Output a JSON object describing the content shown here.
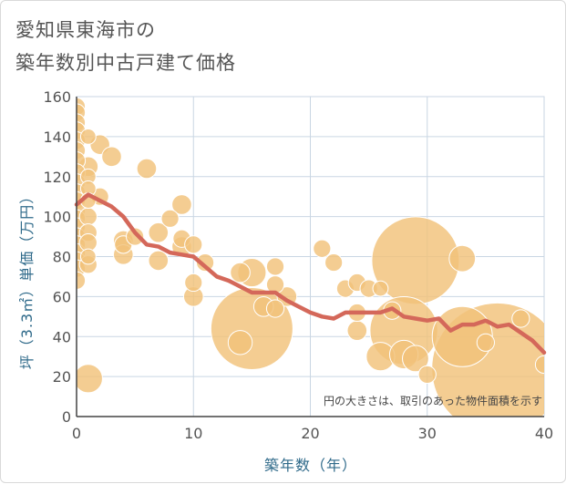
{
  "chart_data": {
    "type": "scatter",
    "title": "愛知県東海市の\n築年数別中古戸建て価格",
    "xlabel": "築年数（年）",
    "ylabel": "坪（3.3㎡）単価（万円）",
    "note": "円の大きさは、取引のあった物件面積を示す",
    "xlim": [
      0,
      40
    ],
    "ylim": [
      0,
      160
    ],
    "xticks": [
      0,
      10,
      20,
      30,
      40
    ],
    "yticks": [
      0,
      20,
      40,
      60,
      80,
      100,
      120,
      140,
      160
    ],
    "grid": true,
    "colors": {
      "bubble": "#f2c27a",
      "bubble_stroke": "#ffffff",
      "trend": "#d4685a"
    },
    "points": [
      {
        "x": 0,
        "y": 155,
        "s": 1.6
      },
      {
        "x": 0,
        "y": 152,
        "s": 1.6
      },
      {
        "x": 0,
        "y": 147,
        "s": 1.6
      },
      {
        "x": 0,
        "y": 143,
        "s": 1.6
      },
      {
        "x": 0,
        "y": 138,
        "s": 1.6
      },
      {
        "x": 0,
        "y": 133,
        "s": 1.6
      },
      {
        "x": 0,
        "y": 128,
        "s": 1.6
      },
      {
        "x": 0,
        "y": 122,
        "s": 1.6
      },
      {
        "x": 0,
        "y": 117,
        "s": 1.6
      },
      {
        "x": 0,
        "y": 112,
        "s": 1.6
      },
      {
        "x": 0,
        "y": 108,
        "s": 1.6
      },
      {
        "x": 0,
        "y": 103,
        "s": 1.6
      },
      {
        "x": 0,
        "y": 99,
        "s": 1.6
      },
      {
        "x": 0,
        "y": 95,
        "s": 1.6
      },
      {
        "x": 0,
        "y": 90,
        "s": 1.6
      },
      {
        "x": 0,
        "y": 86,
        "s": 1.6
      },
      {
        "x": 0,
        "y": 82,
        "s": 1.6
      },
      {
        "x": 0,
        "y": 78,
        "s": 1.6
      },
      {
        "x": 0,
        "y": 74,
        "s": 1.6
      },
      {
        "x": 0,
        "y": 68,
        "s": 1.6
      },
      {
        "x": 1,
        "y": 140,
        "s": 1.4
      },
      {
        "x": 1,
        "y": 125,
        "s": 1.8
      },
      {
        "x": 1,
        "y": 120,
        "s": 1.4
      },
      {
        "x": 1,
        "y": 114,
        "s": 1.4
      },
      {
        "x": 1,
        "y": 108,
        "s": 1.4
      },
      {
        "x": 1,
        "y": 100,
        "s": 1.6
      },
      {
        "x": 1,
        "y": 92,
        "s": 1.6
      },
      {
        "x": 1,
        "y": 87,
        "s": 1.6
      },
      {
        "x": 1,
        "y": 80,
        "s": 1.4
      },
      {
        "x": 1,
        "y": 76,
        "s": 1.6
      },
      {
        "x": 1,
        "y": 19,
        "s": 2.6
      },
      {
        "x": 2,
        "y": 136,
        "s": 1.8
      },
      {
        "x": 2,
        "y": 110,
        "s": 1.6
      },
      {
        "x": 3,
        "y": 130,
        "s": 1.8
      },
      {
        "x": 4,
        "y": 88,
        "s": 1.8
      },
      {
        "x": 4,
        "y": 86,
        "s": 1.6
      },
      {
        "x": 4,
        "y": 81,
        "s": 1.8
      },
      {
        "x": 5,
        "y": 90,
        "s": 1.6
      },
      {
        "x": 6,
        "y": 124,
        "s": 1.8
      },
      {
        "x": 7,
        "y": 92,
        "s": 1.8
      },
      {
        "x": 7,
        "y": 78,
        "s": 1.8
      },
      {
        "x": 8,
        "y": 99,
        "s": 1.6
      },
      {
        "x": 9,
        "y": 106,
        "s": 1.8
      },
      {
        "x": 9,
        "y": 89,
        "s": 1.6
      },
      {
        "x": 9,
        "y": 85,
        "s": 1.8
      },
      {
        "x": 10,
        "y": 86,
        "s": 1.6
      },
      {
        "x": 10,
        "y": 67,
        "s": 1.6
      },
      {
        "x": 10,
        "y": 60,
        "s": 1.8
      },
      {
        "x": 11,
        "y": 77,
        "s": 1.6
      },
      {
        "x": 14,
        "y": 72,
        "s": 1.8
      },
      {
        "x": 14,
        "y": 37,
        "s": 2.2
      },
      {
        "x": 15,
        "y": 72,
        "s": 2.6
      },
      {
        "x": 15,
        "y": 44,
        "s": 7.5
      },
      {
        "x": 16,
        "y": 55,
        "s": 1.8
      },
      {
        "x": 17,
        "y": 75,
        "s": 1.6
      },
      {
        "x": 17,
        "y": 66,
        "s": 1.6
      },
      {
        "x": 17,
        "y": 54,
        "s": 1.6
      },
      {
        "x": 18,
        "y": 60,
        "s": 1.8
      },
      {
        "x": 21,
        "y": 84,
        "s": 1.6
      },
      {
        "x": 22,
        "y": 77,
        "s": 1.6
      },
      {
        "x": 23,
        "y": 64,
        "s": 1.6
      },
      {
        "x": 24,
        "y": 67,
        "s": 1.6
      },
      {
        "x": 24,
        "y": 52,
        "s": 1.6
      },
      {
        "x": 24,
        "y": 43,
        "s": 1.8
      },
      {
        "x": 25,
        "y": 64,
        "s": 1.6
      },
      {
        "x": 26,
        "y": 64,
        "s": 1.4
      },
      {
        "x": 26,
        "y": 30,
        "s": 2.6
      },
      {
        "x": 27,
        "y": 53,
        "s": 1.6
      },
      {
        "x": 28,
        "y": 43,
        "s": 6.2
      },
      {
        "x": 28,
        "y": 31,
        "s": 2.6
      },
      {
        "x": 29,
        "y": 78,
        "s": 8.0
      },
      {
        "x": 29,
        "y": 29,
        "s": 2.4
      },
      {
        "x": 30,
        "y": 21,
        "s": 1.6
      },
      {
        "x": 33,
        "y": 79,
        "s": 2.4
      },
      {
        "x": 33,
        "y": 40,
        "s": 5.5
      },
      {
        "x": 35,
        "y": 37,
        "s": 1.6
      },
      {
        "x": 36,
        "y": 24,
        "s": 12.0
      },
      {
        "x": 38,
        "y": 49,
        "s": 1.6
      },
      {
        "x": 40,
        "y": 26,
        "s": 1.6
      }
    ],
    "trend": {
      "x": [
        0,
        1,
        2,
        3,
        4,
        5,
        6,
        7,
        8,
        9,
        10,
        11,
        12,
        13,
        14,
        15,
        16,
        17,
        18,
        19,
        20,
        21,
        22,
        23,
        24,
        25,
        26,
        27,
        28,
        29,
        30,
        31,
        32,
        33,
        34,
        35,
        36,
        37,
        38,
        39,
        40
      ],
      "y": [
        106,
        111,
        108,
        105,
        100,
        92,
        86,
        85,
        82,
        81,
        80,
        75,
        70,
        68,
        65,
        62,
        62,
        62,
        58,
        55,
        52,
        50,
        49,
        52,
        52,
        52,
        52,
        54,
        50,
        49,
        48,
        49,
        43,
        46,
        46,
        48,
        45,
        46,
        42,
        38,
        32
      ]
    }
  }
}
